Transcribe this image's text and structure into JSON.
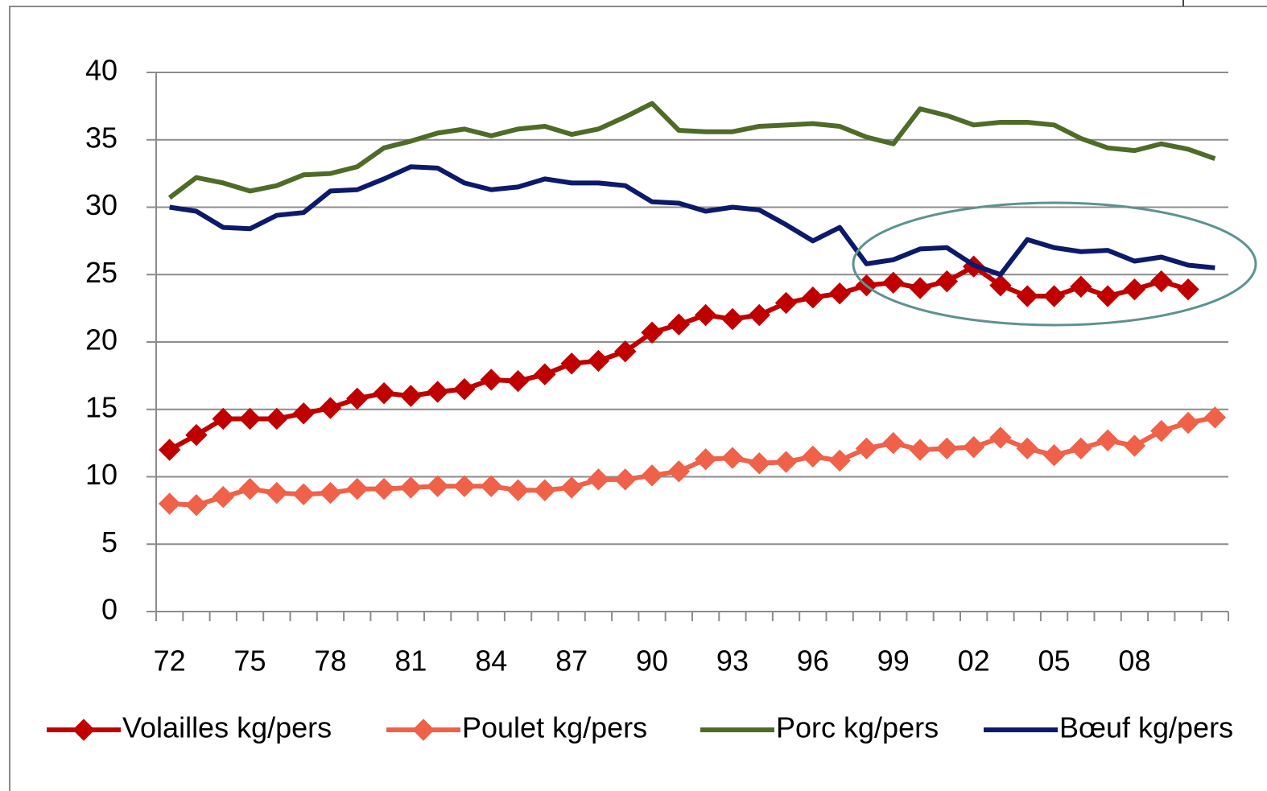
{
  "chart_data": {
    "type": "line",
    "categories": [
      "72",
      null,
      null,
      "75",
      null,
      null,
      "78",
      null,
      null,
      "81",
      null,
      null,
      "84",
      null,
      null,
      "87",
      null,
      null,
      "90",
      null,
      null,
      "93",
      null,
      null,
      "96",
      null,
      null,
      "99",
      null,
      null,
      "02",
      null,
      null,
      "05",
      null,
      null,
      "08",
      null,
      null,
      null
    ],
    "ylim": [
      0,
      40
    ],
    "yticks": [
      0,
      5,
      10,
      15,
      20,
      25,
      30,
      35,
      40
    ],
    "grid": true,
    "legend": "bottom",
    "series": [
      {
        "name": "Volailles kg/pers",
        "color": "#c00000",
        "marker": "diamond",
        "values": [
          12.0,
          13.1,
          14.3,
          14.3,
          14.3,
          14.7,
          15.1,
          15.8,
          16.2,
          16.0,
          16.3,
          16.5,
          17.2,
          17.1,
          17.6,
          18.4,
          18.6,
          19.3,
          20.7,
          21.3,
          22.0,
          21.7,
          22.0,
          22.9,
          23.3,
          23.6,
          24.2,
          24.4,
          24.0,
          24.5,
          25.6,
          24.2,
          23.4,
          23.4,
          24.1,
          23.4,
          23.9,
          24.5,
          23.9,
          null
        ]
      },
      {
        "name": "Poulet kg/pers",
        "color": "#f0614a",
        "marker": "diamond",
        "values": [
          8.0,
          7.9,
          8.5,
          9.1,
          8.8,
          8.7,
          8.8,
          9.1,
          9.1,
          9.2,
          9.3,
          9.3,
          9.3,
          9.0,
          9.0,
          9.2,
          9.8,
          9.8,
          10.1,
          10.4,
          11.3,
          11.4,
          11.0,
          11.1,
          11.5,
          11.2,
          12.1,
          12.5,
          12.0,
          12.1,
          12.2,
          12.9,
          12.1,
          11.6,
          12.1,
          12.7,
          12.3,
          13.4,
          14.0,
          14.4
        ]
      },
      {
        "name": "Porc kg/pers",
        "color": "#4f6b28",
        "marker": null,
        "values": [
          30.7,
          32.2,
          31.8,
          31.2,
          31.6,
          32.4,
          32.5,
          33.0,
          34.4,
          34.9,
          35.5,
          35.8,
          35.3,
          35.8,
          36.0,
          35.4,
          35.8,
          36.7,
          37.7,
          35.7,
          35.6,
          35.6,
          36.0,
          36.1,
          36.2,
          36.0,
          35.2,
          34.7,
          37.3,
          36.8,
          36.1,
          36.3,
          36.3,
          36.1,
          35.1,
          34.4,
          34.2,
          34.7,
          34.3,
          33.6
        ]
      },
      {
        "name": "Bœuf kg/pers",
        "color": "#0d1a6b",
        "marker": null,
        "values": [
          30.0,
          29.7,
          28.5,
          28.4,
          29.4,
          29.6,
          31.2,
          31.3,
          32.1,
          33.0,
          32.9,
          31.8,
          31.3,
          31.5,
          32.1,
          31.8,
          31.8,
          31.6,
          30.4,
          30.3,
          29.7,
          30.0,
          29.8,
          28.7,
          27.5,
          28.5,
          25.8,
          26.1,
          26.9,
          27.0,
          25.7,
          25.0,
          27.6,
          27.0,
          26.7,
          26.8,
          26.0,
          26.3,
          25.7,
          25.5
        ]
      }
    ]
  }
}
